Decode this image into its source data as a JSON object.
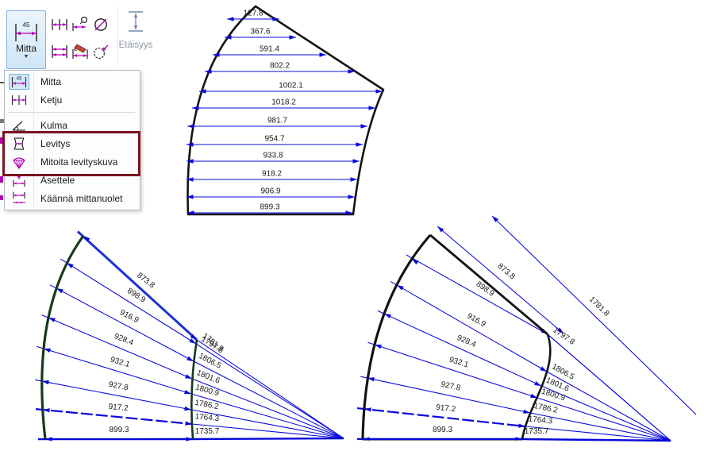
{
  "ribbon": {
    "mitta_button": {
      "label": "Mitta",
      "icon_text": "45"
    },
    "etaisyys_button": {
      "label": "Etäisyys"
    },
    "small_buttons": [
      "chain-dimension",
      "dimension-with-circle",
      "diameter",
      "double-dimension",
      "edit-dimension",
      "circle-dimension"
    ]
  },
  "menu": {
    "items": [
      {
        "label": "Mitta",
        "icon": "dimension-45",
        "selected": true
      },
      {
        "label": "Ketju",
        "icon": "chain-dimension"
      },
      {
        "label": "Kulma",
        "icon": "angle-dimension"
      },
      {
        "label": "Levitys",
        "icon": "unfold",
        "highlighted": true
      },
      {
        "label": "Mitoita levityskuva",
        "icon": "dimension-unfold-drawing",
        "highlighted": true
      },
      {
        "label": "Asettele",
        "icon": "arrange-dimensions"
      },
      {
        "label": "Käännä mittanuolet",
        "icon": "flip-dimension-arrows"
      }
    ],
    "highlight_color": "#7a131f"
  },
  "drawings": {
    "top_flat_pattern": {
      "widths": [
        "127.8",
        "367.6",
        "591.4",
        "802.2",
        "1002.1",
        "1018.2",
        "981.7",
        "954.7",
        "933.8",
        "918.2",
        "906.9",
        "899.3"
      ]
    },
    "bottom_left_fan": {
      "segment_widths": [
        "873.8",
        "898.9",
        "916.9",
        "928.4",
        "932.1",
        "927.8",
        "917.2",
        "899.3"
      ],
      "radial_totals": [
        "1781.8",
        "1797.8",
        "1806.5",
        "1801.6",
        "1800.9",
        "1786.2",
        "1764.3",
        "1735.7"
      ]
    },
    "bottom_right_fan": {
      "segment_widths": [
        "873.8",
        "898.9",
        "916.9",
        "928.4",
        "932.1",
        "927.8",
        "917.2",
        "899.3"
      ],
      "radial_totals": [
        "1781.8",
        "1797.8",
        "1806.5",
        "1801.6",
        "1800.9",
        "1786.2",
        "1764.3",
        "1735.7"
      ]
    },
    "colors": {
      "dimension_blue": "#0707dd",
      "edge_blue": "#1d33d2",
      "outline_black": "#141414",
      "selected_green": "#16391a",
      "text": "#1a1a1a"
    }
  }
}
